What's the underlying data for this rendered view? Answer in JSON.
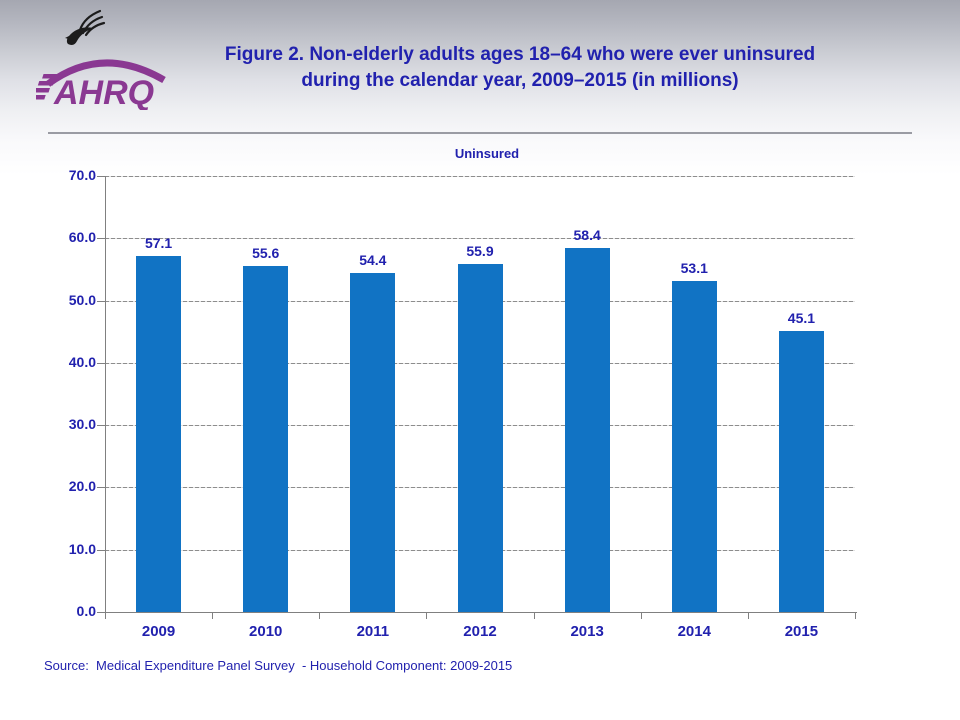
{
  "header": {
    "title_line1": "Figure 2. Non-elderly adults ages 18–64 who were ever uninsured",
    "title_line2": "during the calendar year, 2009–2015 (in millions)",
    "logo_text": "AHRQ"
  },
  "legend": {
    "label": "Uninsured"
  },
  "chart_data": {
    "type": "bar",
    "title": "Figure 2. Non-elderly adults ages 18–64 who were ever uninsured during the calendar year, 2009–2015 (in millions)",
    "categories": [
      "2009",
      "2010",
      "2011",
      "2012",
      "2013",
      "2014",
      "2015"
    ],
    "series": [
      {
        "name": "Uninsured",
        "values": [
          57.1,
          55.6,
          54.4,
          55.9,
          58.4,
          53.1,
          45.1
        ]
      }
    ],
    "xlabel": "",
    "ylabel": "",
    "ylim": [
      0,
      70
    ],
    "ytick_step": 10,
    "ytick_labels": [
      "0.0",
      "10.0",
      "20.0",
      "30.0",
      "40.0",
      "50.0",
      "60.0",
      "70.0"
    ],
    "grid": true,
    "legend_position": "top-center",
    "bar_color": "#1173c4",
    "value_label_color": "#2121ae",
    "axis_label_color": "#2121ae"
  },
  "source": {
    "text": "Source:  Medical Expenditure Panel Survey  - Household Component: 2009-2015"
  },
  "colors": {
    "title_blue": "#2121ae",
    "bar_blue": "#1173c4",
    "logo_purple": "#8a3892",
    "axis_gray": "#808080",
    "grid_gray": "#8d8d8d"
  }
}
